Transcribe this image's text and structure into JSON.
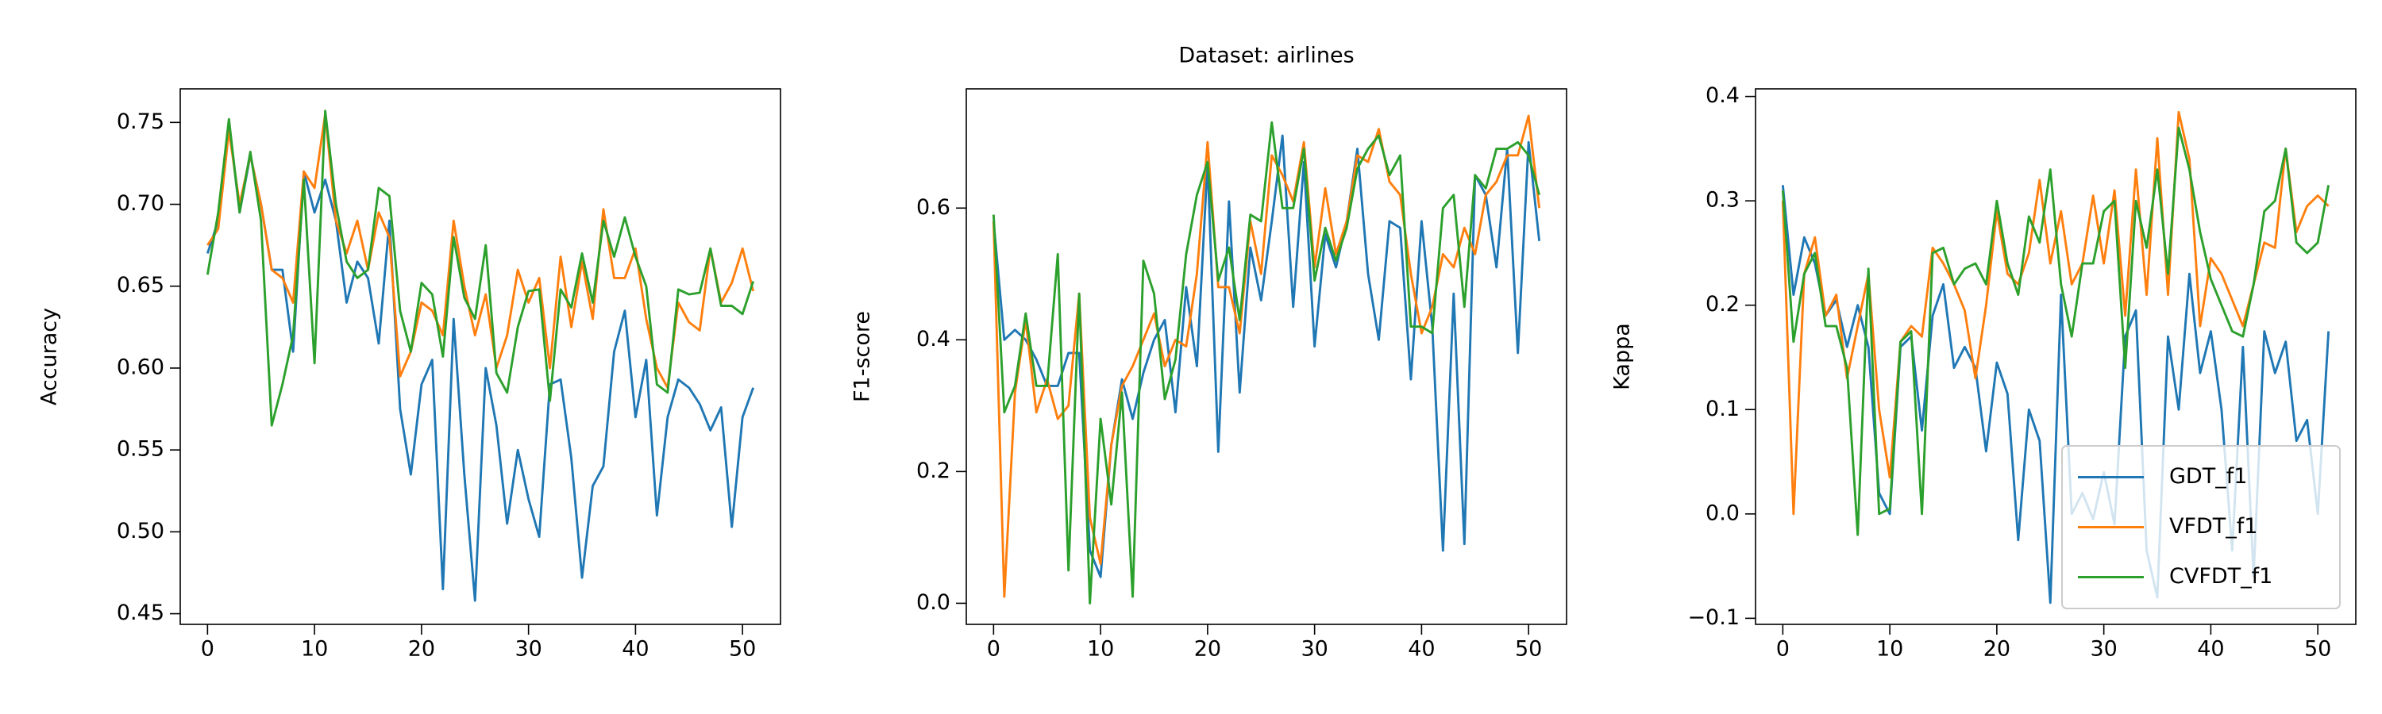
{
  "chart_data": [
    {
      "type": "line",
      "ylabel": "Accuracy",
      "x": [
        0,
        1,
        2,
        3,
        4,
        5,
        6,
        7,
        8,
        9,
        10,
        11,
        12,
        13,
        14,
        15,
        16,
        17,
        18,
        19,
        20,
        21,
        22,
        23,
        24,
        25,
        26,
        27,
        28,
        29,
        30,
        31,
        32,
        33,
        34,
        35,
        36,
        37,
        38,
        39,
        40,
        41,
        42,
        43,
        44,
        45,
        46,
        47,
        48,
        49,
        50,
        51
      ],
      "xlim": [
        -2.55,
        53.55
      ],
      "xticks": [
        0,
        10,
        20,
        30,
        40,
        50
      ],
      "ylim": [
        0.4435,
        0.7705
      ],
      "yticks": [
        0.45,
        {
          "value": 0.5,
          "label": "0.50"
        },
        0.55,
        {
          "value": 0.6,
          "label": "0.60"
        },
        0.65,
        {
          "value": 0.7,
          "label": "0.70"
        },
        0.75
      ],
      "series": [
        {
          "name": "GDT_f1",
          "color": "#1f77b4",
          "values": [
            0.67,
            0.69,
            0.75,
            0.695,
            0.73,
            0.7,
            0.66,
            0.66,
            0.61,
            0.72,
            0.695,
            0.715,
            0.69,
            0.64,
            0.665,
            0.655,
            0.615,
            0.69,
            0.575,
            0.535,
            0.59,
            0.605,
            0.465,
            0.63,
            0.535,
            0.458,
            0.6,
            0.565,
            0.505,
            0.55,
            0.52,
            0.497,
            0.59,
            0.593,
            0.545,
            0.472,
            0.528,
            0.54,
            0.61,
            0.635,
            0.57,
            0.605,
            0.51,
            0.57,
            0.593,
            0.588,
            0.578,
            0.562,
            0.576,
            0.503,
            0.57,
            0.588
          ]
        },
        {
          "name": "VFDT_f1",
          "color": "#ff7f0e",
          "values": [
            0.675,
            0.685,
            0.745,
            0.7,
            0.73,
            0.7,
            0.66,
            0.655,
            0.64,
            0.72,
            0.71,
            0.755,
            0.69,
            0.67,
            0.69,
            0.66,
            0.695,
            0.68,
            0.595,
            0.61,
            0.64,
            0.635,
            0.62,
            0.69,
            0.65,
            0.62,
            0.645,
            0.6,
            0.62,
            0.66,
            0.64,
            0.655,
            0.6,
            0.668,
            0.625,
            0.665,
            0.63,
            0.697,
            0.655,
            0.655,
            0.673,
            0.63,
            0.6,
            0.588,
            0.64,
            0.628,
            0.623,
            0.673,
            0.64,
            0.652,
            0.673,
            0.647
          ]
        },
        {
          "name": "CVFDT_f1",
          "color": "#2ca02c",
          "values": [
            0.657,
            0.695,
            0.752,
            0.695,
            0.732,
            0.69,
            0.565,
            0.59,
            0.62,
            0.715,
            0.603,
            0.757,
            0.7,
            0.665,
            0.655,
            0.66,
            0.71,
            0.705,
            0.635,
            0.61,
            0.652,
            0.645,
            0.607,
            0.68,
            0.643,
            0.63,
            0.675,
            0.597,
            0.585,
            0.625,
            0.647,
            0.648,
            0.58,
            0.648,
            0.637,
            0.67,
            0.64,
            0.69,
            0.668,
            0.692,
            0.668,
            0.65,
            0.59,
            0.585,
            0.648,
            0.645,
            0.646,
            0.673,
            0.638,
            0.638,
            0.633,
            0.653
          ]
        }
      ]
    },
    {
      "type": "line",
      "title": "Dataset: airlines",
      "ylabel": "F1-score",
      "x": [
        0,
        1,
        2,
        3,
        4,
        5,
        6,
        7,
        8,
        9,
        10,
        11,
        12,
        13,
        14,
        15,
        16,
        17,
        18,
        19,
        20,
        21,
        22,
        23,
        24,
        25,
        26,
        27,
        28,
        29,
        30,
        31,
        32,
        33,
        34,
        35,
        36,
        37,
        38,
        39,
        40,
        41,
        42,
        43,
        44,
        45,
        46,
        47,
        48,
        49,
        50,
        51
      ],
      "xlim": [
        -2.55,
        53.55
      ],
      "xticks": [
        0,
        10,
        20,
        30,
        40,
        50
      ],
      "ylim": [
        -0.032,
        0.781
      ],
      "yticks": [
        {
          "value": 0,
          "label": "0.0"
        },
        0.2,
        0.4,
        0.6
      ],
      "series": [
        {
          "name": "GDT_f1",
          "color": "#1f77b4",
          "values": [
            0.58,
            0.4,
            0.415,
            0.4,
            0.37,
            0.33,
            0.33,
            0.38,
            0.38,
            0.08,
            0.04,
            0.24,
            0.34,
            0.28,
            0.35,
            0.4,
            0.43,
            0.29,
            0.48,
            0.36,
            0.67,
            0.23,
            0.61,
            0.32,
            0.54,
            0.46,
            0.58,
            0.71,
            0.45,
            0.67,
            0.39,
            0.56,
            0.51,
            0.58,
            0.69,
            0.5,
            0.4,
            0.58,
            0.57,
            0.34,
            0.58,
            0.42,
            0.08,
            0.47,
            0.09,
            0.65,
            0.62,
            0.51,
            0.69,
            0.38,
            0.7,
            0.55
          ]
        },
        {
          "name": "VFDT_f1",
          "color": "#ff7f0e",
          "values": [
            0.58,
            0.01,
            0.32,
            0.43,
            0.29,
            0.34,
            0.28,
            0.3,
            0.47,
            0.13,
            0.06,
            0.24,
            0.33,
            0.36,
            0.4,
            0.44,
            0.36,
            0.4,
            0.39,
            0.5,
            0.7,
            0.48,
            0.48,
            0.41,
            0.58,
            0.5,
            0.68,
            0.65,
            0.61,
            0.7,
            0.51,
            0.63,
            0.53,
            0.58,
            0.68,
            0.67,
            0.72,
            0.64,
            0.62,
            0.5,
            0.41,
            0.45,
            0.53,
            0.51,
            0.57,
            0.53,
            0.62,
            0.64,
            0.68,
            0.68,
            0.74,
            0.6
          ]
        },
        {
          "name": "CVFDT_f1",
          "color": "#2ca02c",
          "values": [
            0.59,
            0.29,
            0.33,
            0.44,
            0.33,
            0.33,
            0.53,
            0.05,
            0.47,
            0.0,
            0.28,
            0.15,
            0.32,
            0.01,
            0.52,
            0.47,
            0.31,
            0.37,
            0.53,
            0.62,
            0.67,
            0.49,
            0.54,
            0.43,
            0.59,
            0.58,
            0.73,
            0.6,
            0.6,
            0.69,
            0.49,
            0.57,
            0.52,
            0.57,
            0.66,
            0.69,
            0.71,
            0.65,
            0.68,
            0.42,
            0.42,
            0.41,
            0.6,
            0.62,
            0.45,
            0.65,
            0.63,
            0.69,
            0.69,
            0.7,
            0.68,
            0.62
          ]
        }
      ]
    },
    {
      "type": "line",
      "ylabel": "Kappa",
      "legend": "lower right",
      "x": [
        0,
        1,
        2,
        3,
        4,
        5,
        6,
        7,
        8,
        9,
        10,
        11,
        12,
        13,
        14,
        15,
        16,
        17,
        18,
        19,
        20,
        21,
        22,
        23,
        24,
        25,
        26,
        27,
        28,
        29,
        30,
        31,
        32,
        33,
        34,
        35,
        36,
        37,
        38,
        39,
        40,
        41,
        42,
        43,
        44,
        45,
        46,
        47,
        48,
        49,
        50,
        51
      ],
      "xlim": [
        -2.55,
        53.55
      ],
      "xticks": [
        0,
        10,
        20,
        30,
        40,
        50
      ],
      "ylim": [
        -0.1058,
        0.4073
      ],
      "yticks": [
        {
          "value": -0.1,
          "label": "−0.1"
        },
        {
          "value": 0,
          "label": "0.0"
        },
        0.1,
        0.2,
        0.3,
        0.4
      ],
      "series": [
        {
          "name": "GDT_f1",
          "color": "#1f77b4",
          "values": [
            0.315,
            0.21,
            0.265,
            0.24,
            0.19,
            0.205,
            0.16,
            0.2,
            0.16,
            0.02,
            0.0,
            0.16,
            0.17,
            0.08,
            0.19,
            0.22,
            0.14,
            0.16,
            0.14,
            0.06,
            0.145,
            0.115,
            -0.025,
            0.1,
            0.07,
            -0.085,
            0.21,
            0.0,
            0.02,
            -0.005,
            0.04,
            -0.01,
            0.17,
            0.195,
            -0.035,
            -0.08,
            0.17,
            0.1,
            0.23,
            0.135,
            0.175,
            0.1,
            -0.035,
            0.16,
            -0.06,
            0.175,
            0.135,
            0.165,
            0.07,
            0.09,
            0.0,
            0.175
          ]
        },
        {
          "name": "VFDT_f1",
          "color": "#ff7f0e",
          "values": [
            0.3,
            0.0,
            0.23,
            0.265,
            0.19,
            0.21,
            0.13,
            0.18,
            0.23,
            0.1,
            0.035,
            0.165,
            0.18,
            0.17,
            0.255,
            0.24,
            0.22,
            0.195,
            0.13,
            0.2,
            0.29,
            0.23,
            0.22,
            0.25,
            0.32,
            0.24,
            0.29,
            0.22,
            0.24,
            0.305,
            0.24,
            0.31,
            0.19,
            0.33,
            0.21,
            0.36,
            0.21,
            0.385,
            0.34,
            0.18,
            0.245,
            0.23,
            0.205,
            0.18,
            0.22,
            0.26,
            0.255,
            0.35,
            0.27,
            0.295,
            0.305,
            0.295
          ]
        },
        {
          "name": "CVFDT_f1",
          "color": "#2ca02c",
          "values": [
            0.31,
            0.165,
            0.23,
            0.25,
            0.18,
            0.18,
            0.14,
            -0.02,
            0.235,
            0.0,
            0.005,
            0.165,
            0.175,
            0.0,
            0.25,
            0.255,
            0.22,
            0.235,
            0.24,
            0.22,
            0.3,
            0.24,
            0.21,
            0.285,
            0.26,
            0.33,
            0.22,
            0.17,
            0.24,
            0.24,
            0.29,
            0.3,
            0.14,
            0.3,
            0.255,
            0.33,
            0.23,
            0.37,
            0.33,
            0.27,
            0.225,
            0.2,
            0.175,
            0.17,
            0.22,
            0.29,
            0.3,
            0.35,
            0.26,
            0.25,
            0.26,
            0.315
          ]
        }
      ]
    }
  ]
}
